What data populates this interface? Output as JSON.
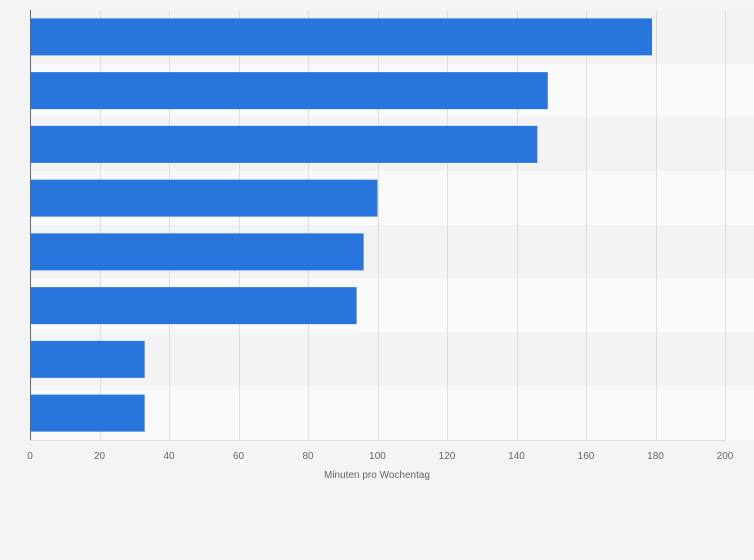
{
  "chart_data": {
    "type": "bar",
    "orientation": "horizontal",
    "title": "",
    "xlabel": "Minuten pro Wochentag",
    "ylabel": "",
    "categories": [
      "",
      "",
      "",
      "",
      "",
      "",
      "",
      ""
    ],
    "values": [
      179,
      149,
      146,
      100,
      96,
      94,
      33,
      33
    ],
    "xlim": [
      0,
      200
    ],
    "xticks": [
      0,
      20,
      40,
      60,
      80,
      100,
      120,
      140,
      160,
      180,
      200
    ],
    "grid": true,
    "legend": "none",
    "colors": {
      "bar": "#2876dd",
      "band_odd": "#f3f3f4",
      "band_even": "#f9f9fa",
      "grid": "#dedede",
      "axis": "#666666",
      "text": "#666666"
    }
  }
}
